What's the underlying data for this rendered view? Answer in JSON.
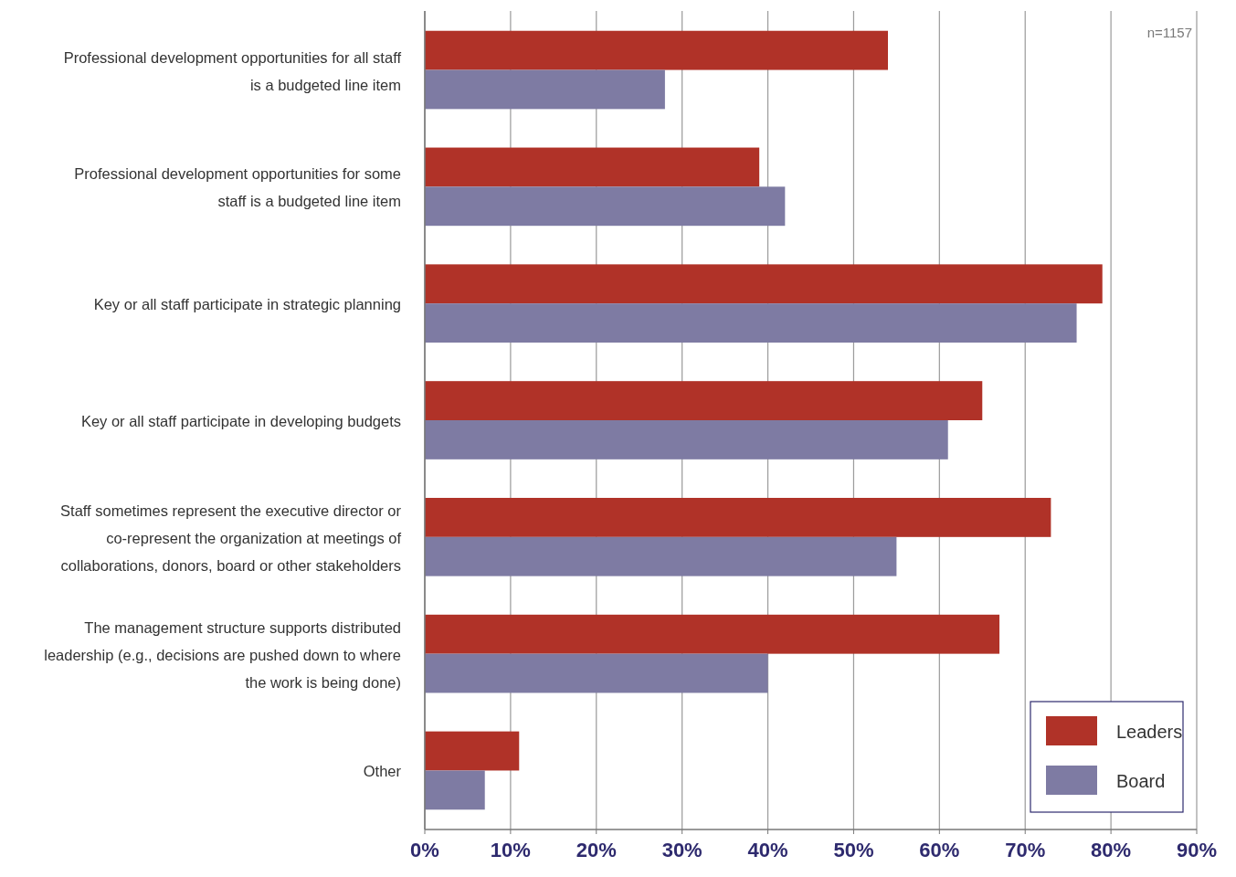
{
  "chart_data": {
    "type": "bar",
    "orientation": "horizontal",
    "categories": [
      "Professional development opportunities for all staff is a budgeted line item",
      "Professional development opportunities for some staff is a budgeted line item",
      "Key or all staff participate in strategic planning",
      "Key or all staff participate in developing budgets",
      "Staff sometimes represent the executive director or co-represent the organization at meetings of collaborations, donors, board or other stakeholders",
      "The management structure supports distributed leadership (e.g., decisions are pushed down to where the work is being done)",
      "Other"
    ],
    "series": [
      {
        "name": "Leaders",
        "color": "#b03228",
        "values": [
          54,
          39,
          79,
          65,
          73,
          67,
          11
        ]
      },
      {
        "name": "Board",
        "color": "#7e7ba3",
        "values": [
          28,
          42,
          76,
          61,
          55,
          40,
          7
        ]
      }
    ],
    "xlim": [
      0,
      90
    ],
    "xticks": [
      {
        "value": 0,
        "label": "0%"
      },
      {
        "value": 10,
        "label": "10%"
      },
      {
        "value": 20,
        "label": "20%"
      },
      {
        "value": 30,
        "label": "30%"
      },
      {
        "value": 40,
        "label": "40%"
      },
      {
        "value": 50,
        "label": "50%"
      },
      {
        "value": 60,
        "label": "60%"
      },
      {
        "value": 70,
        "label": "70%"
      },
      {
        "value": 80,
        "label": "80%"
      },
      {
        "value": 90,
        "label": "90%"
      }
    ],
    "grid": "x",
    "legend": "bottom right",
    "annotations": [
      "n=1157"
    ]
  }
}
